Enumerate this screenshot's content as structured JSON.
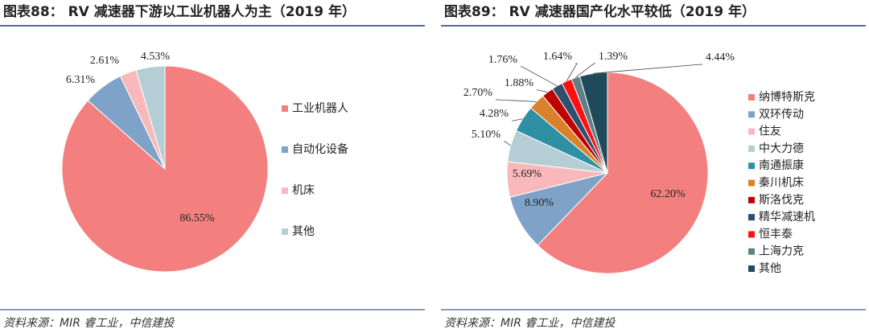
{
  "chart_data": [
    {
      "type": "pie",
      "title": "图表88： RV 减速器下游以工业机器人为主（2019 年）",
      "source": "资料来源：MIR 睿工业，中信建投",
      "categories": [
        "工业机器人",
        "自动化设备",
        "机床",
        "其他"
      ],
      "values": [
        86.55,
        6.31,
        2.61,
        4.53
      ],
      "value_labels": [
        "86.55%",
        "6.31%",
        "2.61%",
        "4.53%"
      ],
      "colors": [
        "#f47f7f",
        "#7fa3c8",
        "#f9b9bc",
        "#b5ced6"
      ]
    },
    {
      "type": "pie",
      "title": "图表89： RV 减速器国产化水平较低（2019 年）",
      "source": "资料来源：MIR 睿工业，中信建投",
      "categories": [
        "纳博特斯克",
        "双环传动",
        "住友",
        "中大力德",
        "南通振康",
        "秦川机床",
        "斯洛伐克",
        "精华减速机",
        "恒丰泰",
        "上海力克",
        "其他"
      ],
      "values": [
        62.2,
        8.9,
        5.69,
        5.1,
        4.28,
        2.7,
        1.88,
        1.76,
        1.64,
        1.39,
        4.44
      ],
      "value_labels": [
        "62.20%",
        "8.90%",
        "5.69%",
        "5.10%",
        "4.28%",
        "2.70%",
        "1.88%",
        "1.76%",
        "1.64%",
        "1.39%",
        "4.44%"
      ],
      "colors": [
        "#f47f7f",
        "#7fa3c8",
        "#f9b9bc",
        "#b5ced6",
        "#2f8fa3",
        "#d9822b",
        "#c00000",
        "#2f4f6f",
        "#ff1010",
        "#5f7f86",
        "#1f4a5a"
      ]
    }
  ]
}
